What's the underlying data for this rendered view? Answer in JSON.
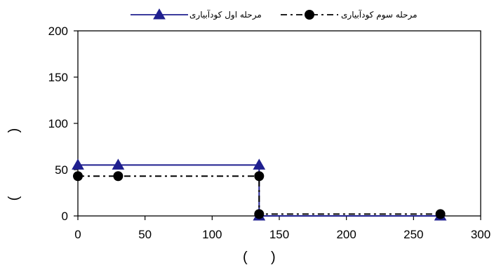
{
  "chart_data": {
    "type": "line",
    "title": "",
    "xlabel": "( )",
    "ylabel": "( )",
    "xlim": [
      0,
      300
    ],
    "ylim": [
      0,
      200
    ],
    "x_ticks": [
      0,
      50,
      100,
      150,
      200,
      250,
      300
    ],
    "y_ticks": [
      0,
      50,
      100,
      150,
      200
    ],
    "grid": false,
    "legend_position": "top",
    "series": [
      {
        "name": "مرحله اول کودآبیاری",
        "color": "#1f1f8f",
        "marker": "triangle",
        "line_style": "solid",
        "step": true,
        "points": [
          [
            0,
            55
          ],
          [
            30,
            55
          ],
          [
            135,
            55
          ],
          [
            135,
            0
          ],
          [
            270,
            0
          ]
        ]
      },
      {
        "name": "مرحله سوم  کودآبیاری",
        "color": "#000000",
        "marker": "circle",
        "line_style": "dash-dot",
        "step": true,
        "points": [
          [
            0,
            43
          ],
          [
            30,
            43
          ],
          [
            135,
            43
          ],
          [
            135,
            2
          ],
          [
            270,
            2
          ]
        ]
      }
    ]
  }
}
